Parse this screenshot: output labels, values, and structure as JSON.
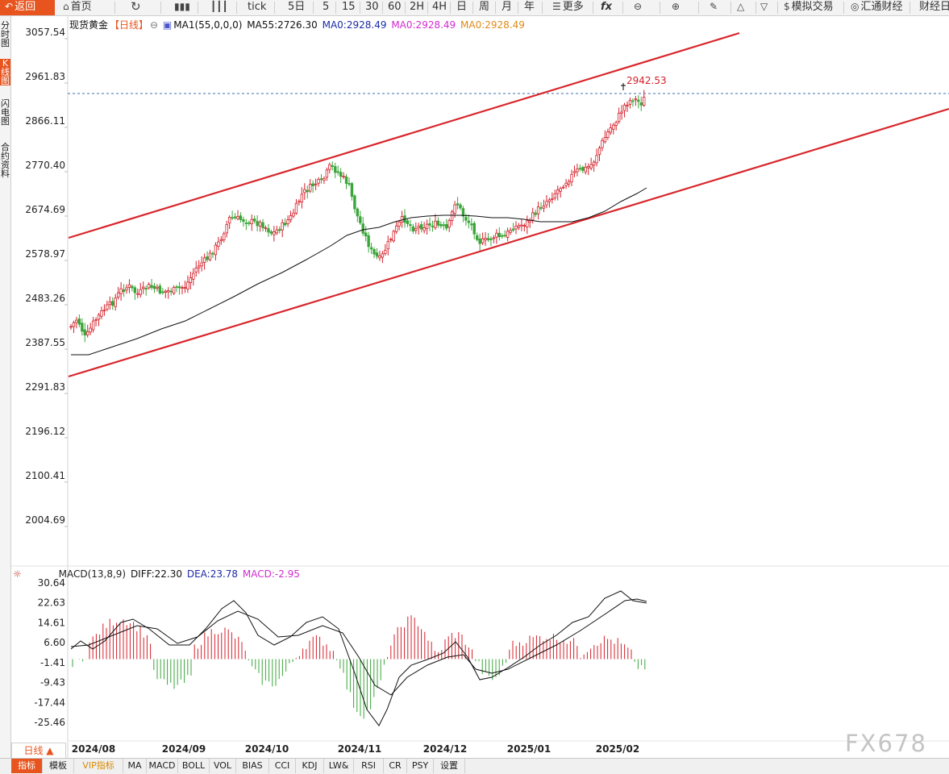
{
  "toolbar": {
    "back": "返回",
    "home": "首页",
    "tick": "tick",
    "period_5d": "5日",
    "p5": "5",
    "p15": "15",
    "p30": "30",
    "p60": "60",
    "p2h": "2H",
    "p4h": "4H",
    "pday": "日",
    "pweek": "周",
    "pmonth": "月",
    "pyear": "年",
    "more": "更多",
    "fx": "fx",
    "sim_trade": "模拟交易",
    "fxnews": "汇通财经",
    "fin_cal": "财经日"
  },
  "left_rail": [
    "分时图",
    "K线图",
    "闪电图",
    "合约资料"
  ],
  "legend": {
    "instrument": "现货黄金",
    "period": "【日线】",
    "ma1": "MA1(55,0,0,0)",
    "ma55": "MA55:2726.30",
    "ma0_a": "MA0:2928.49",
    "ma0_b": "MA0:2928.49",
    "ma0_c": "MA0:2928.49"
  },
  "macd_legend": {
    "name": "MACD(13,8,9)",
    "diff": "DIFF:22.30",
    "dea": "DEA:23.78",
    "macd": "MACD:-2.95"
  },
  "price_axis": [
    "3057.54",
    "2961.83",
    "2866.11",
    "2770.40",
    "2674.69",
    "2578.97",
    "2483.26",
    "2387.55",
    "2291.83",
    "2196.12",
    "2100.41",
    "2004.69"
  ],
  "macd_axis": [
    "30.64",
    "22.63",
    "14.61",
    "6.60",
    "-1.41",
    "-9.43",
    "-17.44",
    "-25.46"
  ],
  "date_axis": [
    "2024/08",
    "2024/09",
    "2024/10",
    "2024/11",
    "2024/12",
    "2025/01",
    "2025/02"
  ],
  "high_label": "2942.53",
  "period_button": "日线 ▲",
  "bottom_tabs": [
    "指标",
    "模板",
    "VIP指标",
    "MA",
    "MACD",
    "BOLL",
    "VOL",
    "BIAS",
    "CCI",
    "KDJ",
    "LW&",
    "RSI",
    "CR",
    "PSY",
    "设置"
  ],
  "watermark": "FX678",
  "colors": {
    "up": "#d4202a",
    "down": "#3aa63a",
    "accent": "#e8541e",
    "channel": "#d8262b",
    "ma": "#111111"
  },
  "chart_data": {
    "type": "candlestick",
    "instrument": "现货黄金",
    "price_range": [
      2004.69,
      3057.54
    ],
    "macd_range": [
      -25.46,
      30.64
    ],
    "last_high": 2942.53,
    "ma55_last": 2726.3,
    "macd_last": {
      "diff": 22.3,
      "dea": 23.78,
      "macd": -2.95
    }
  }
}
